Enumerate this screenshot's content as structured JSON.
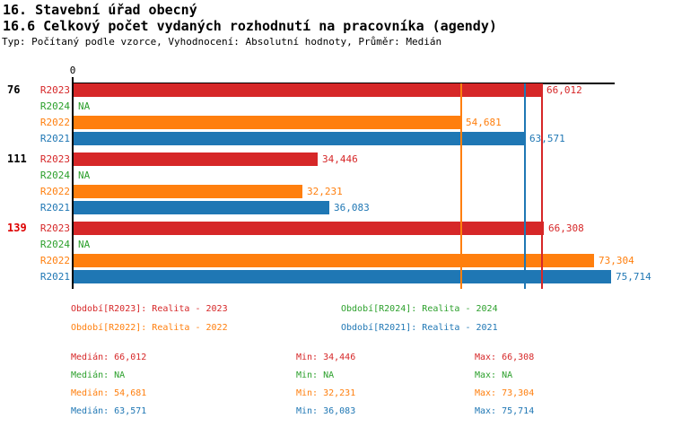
{
  "header": {
    "title1": "16. Stavební úřad obecný",
    "title2": "16.6 Celkový počet vydaných rozhodnutí na pracovníka (agendy)",
    "subtitle": "Typ: Počítaný podle vzorce, Vyhodnocení: Absolutní hodnoty, Průměr: Medián"
  },
  "colors": {
    "R2023": "#d62728",
    "R2024": "#2ca02c",
    "R2022": "#ff7f0e",
    "R2021": "#1f77b4",
    "axis": "#000000",
    "group_highlight": "#dd0000",
    "group_normal": "#000000"
  },
  "chart_data": {
    "type": "bar",
    "orientation": "horizontal",
    "axis_origin_label": "0",
    "xlim": [
      0,
      76400
    ],
    "grid": false,
    "series_order": [
      "R2023",
      "R2024",
      "R2022",
      "R2021"
    ],
    "groups": [
      {
        "label": "76",
        "label_color": "#000000",
        "bars": [
          {
            "series": "R2023",
            "label": "R2023",
            "value": 66012,
            "display": "66,012"
          },
          {
            "series": "R2024",
            "label": "R2024",
            "value": null,
            "display": "NA"
          },
          {
            "series": "R2022",
            "label": "R2022",
            "value": 54681,
            "display": "54,681"
          },
          {
            "series": "R2021",
            "label": "R2021",
            "value": 63571,
            "display": "63,571"
          }
        ]
      },
      {
        "label": "111",
        "label_color": "#000000",
        "bars": [
          {
            "series": "R2023",
            "label": "R2023",
            "value": 34446,
            "display": "34,446"
          },
          {
            "series": "R2024",
            "label": "R2024",
            "value": null,
            "display": "NA"
          },
          {
            "series": "R2022",
            "label": "R2022",
            "value": 32231,
            "display": "32,231"
          },
          {
            "series": "R2021",
            "label": "R2021",
            "value": 36083,
            "display": "36,083"
          }
        ]
      },
      {
        "label": "139",
        "label_color": "#dd0000",
        "bars": [
          {
            "series": "R2023",
            "label": "R2023",
            "value": 66308,
            "display": "66,308"
          },
          {
            "series": "R2024",
            "label": "R2024",
            "value": null,
            "display": "NA"
          },
          {
            "series": "R2022",
            "label": "R2022",
            "value": 73304,
            "display": "73,304"
          },
          {
            "series": "R2021",
            "label": "R2021",
            "value": 75714,
            "display": "75,714"
          }
        ]
      }
    ],
    "median_lines": [
      {
        "series": "R2022",
        "value": 54681
      },
      {
        "series": "R2021",
        "value": 63571
      },
      {
        "series": "R2023",
        "value": 66012
      }
    ]
  },
  "legend": [
    {
      "series": "R2023",
      "label": "Období[R2023]: Realita - 2023"
    },
    {
      "series": "R2024",
      "label": "Období[R2024]: Realita - 2024"
    },
    {
      "series": "R2022",
      "label": "Období[R2022]: Realita - 2022"
    },
    {
      "series": "R2021",
      "label": "Období[R2021]: Realita - 2021"
    }
  ],
  "stats_labels": {
    "median": "Medián",
    "min": "Min",
    "max": "Max"
  },
  "stats_rows": [
    {
      "series": "R2023",
      "median": "66,012",
      "min": "34,446",
      "max": "66,308"
    },
    {
      "series": "R2024",
      "median": "NA",
      "min": "NA",
      "max": "NA"
    },
    {
      "series": "R2022",
      "median": "54,681",
      "min": "32,231",
      "max": "73,304"
    },
    {
      "series": "R2021",
      "median": "63,571",
      "min": "36,083",
      "max": "75,714"
    }
  ]
}
